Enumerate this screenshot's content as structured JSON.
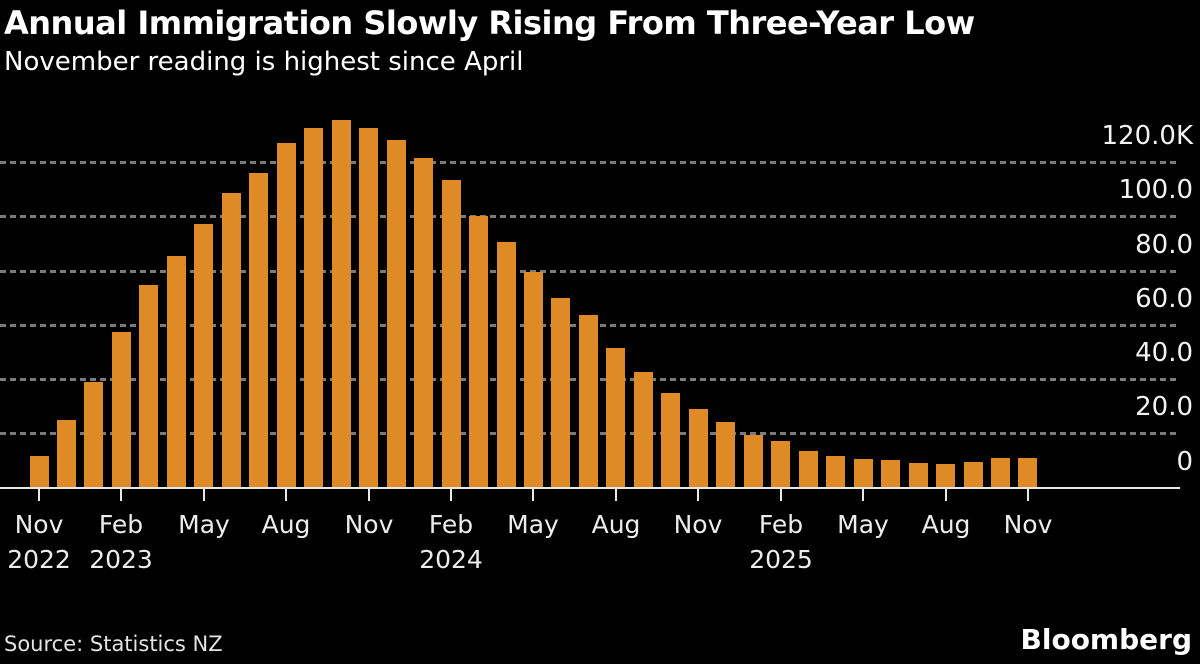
{
  "header": {
    "title": "Annual Immigration Slowly Rising From Three-Year Low",
    "subtitle": "November reading is highest since April"
  },
  "footer": {
    "source_label": "Source: Statistics NZ",
    "brand": "Bloomberg"
  },
  "chart_data": {
    "type": "bar",
    "title": "Annual Immigration Slowly Rising From Three-Year Low",
    "subtitle": "November reading is highest since April",
    "source": "Statistics NZ",
    "unit": "persons, annual (values in thousands)",
    "x": [
      "Nov 2022",
      "Dec 2022",
      "Jan 2023",
      "Feb 2023",
      "Mar 2023",
      "Apr 2023",
      "May 2023",
      "Jun 2023",
      "Jul 2023",
      "Aug 2023",
      "Sep 2023",
      "Oct 2023",
      "Nov 2023",
      "Dec 2023",
      "Jan 2024",
      "Feb 2024",
      "Mar 2024",
      "Apr 2024",
      "May 2024",
      "Jun 2024",
      "Jul 2024",
      "Aug 2024",
      "Sep 2024",
      "Oct 2024",
      "Nov 2024",
      "Dec 2024",
      "Jan 2025",
      "Feb 2025",
      "Mar 2025",
      "Apr 2025",
      "May 2025",
      "Jun 2025",
      "Jul 2025",
      "Aug 2025",
      "Sep 2025",
      "Oct 2025",
      "Nov 2025"
    ],
    "values_thousands": [
      11.5,
      25,
      39,
      57.5,
      74.5,
      85.5,
      97,
      108.5,
      116,
      127,
      132.5,
      135.5,
      132.5,
      128,
      121.5,
      113.5,
      100,
      90.5,
      79.5,
      70,
      63.5,
      51.5,
      42.5,
      35,
      29,
      24,
      19.5,
      17,
      13.5,
      11.5,
      10.5,
      10,
      9,
      8.8,
      9.5,
      10.7,
      11
    ],
    "ylim_thousands": [
      0,
      136
    ],
    "y_axis_side": "right",
    "grid": "dashed-horizontal",
    "legend": "none",
    "y_ticks": [
      {
        "label": "120.0K",
        "value": 120
      },
      {
        "label": "100.0",
        "value": 100
      },
      {
        "label": "80.0",
        "value": 80
      },
      {
        "label": "60.0",
        "value": 60
      },
      {
        "label": "40.0",
        "value": 40
      },
      {
        "label": "20.0",
        "value": 20
      },
      {
        "label": "0",
        "value": 0
      }
    ],
    "x_ticks": [
      {
        "index": 0,
        "label": "Nov",
        "year": "2022"
      },
      {
        "index": 3,
        "label": "Feb",
        "year": "2023"
      },
      {
        "index": 6,
        "label": "May",
        "year": ""
      },
      {
        "index": 9,
        "label": "Aug",
        "year": ""
      },
      {
        "index": 12,
        "label": "Nov",
        "year": ""
      },
      {
        "index": 15,
        "label": "Feb",
        "year": "2024"
      },
      {
        "index": 18,
        "label": "May",
        "year": ""
      },
      {
        "index": 21,
        "label": "Aug",
        "year": ""
      },
      {
        "index": 24,
        "label": "Nov",
        "year": ""
      },
      {
        "index": 27,
        "label": "Feb",
        "year": "2025"
      },
      {
        "index": 30,
        "label": "May",
        "year": ""
      },
      {
        "index": 33,
        "label": "Aug",
        "year": ""
      },
      {
        "index": 36,
        "label": "Nov",
        "year": ""
      }
    ],
    "colors": {
      "bar": "#de8a26",
      "background": "#000000",
      "gridline": "#7b7b7b",
      "axis_line": "#e8e8e8",
      "text": "#ffffff"
    }
  }
}
